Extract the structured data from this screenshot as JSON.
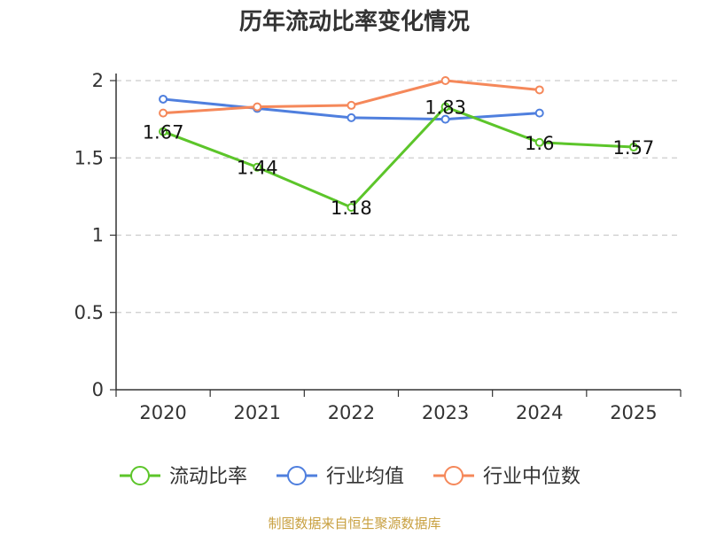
{
  "chart_data": {
    "type": "line",
    "title": "历年流动比率变化情况",
    "categories": [
      "2020",
      "2021",
      "2022",
      "2023",
      "2024",
      "2025"
    ],
    "ylim": [
      0,
      2
    ],
    "yticks": [
      "0",
      "0.5",
      "1",
      "1.5",
      "2"
    ],
    "ytick_values": [
      0,
      0.5,
      1,
      1.5,
      2
    ],
    "grid": true,
    "legend_position": "bottom",
    "series": [
      {
        "name": "流动比率",
        "color": "#5cc52a",
        "values": [
          1.67,
          1.44,
          1.18,
          1.83,
          1.6,
          1.57
        ],
        "labels": [
          "1.67",
          "1.44",
          "1.18",
          "1.83",
          "1.6",
          "1.57"
        ]
      },
      {
        "name": "行业均值",
        "color": "#4f7fde",
        "values": [
          1.88,
          1.82,
          1.76,
          1.75,
          1.79,
          null
        ]
      },
      {
        "name": "行业中位数",
        "color": "#f5885a",
        "values": [
          1.79,
          1.83,
          1.84,
          2.0,
          1.94,
          null
        ]
      }
    ],
    "source": "制图数据来自恒生聚源数据库"
  }
}
